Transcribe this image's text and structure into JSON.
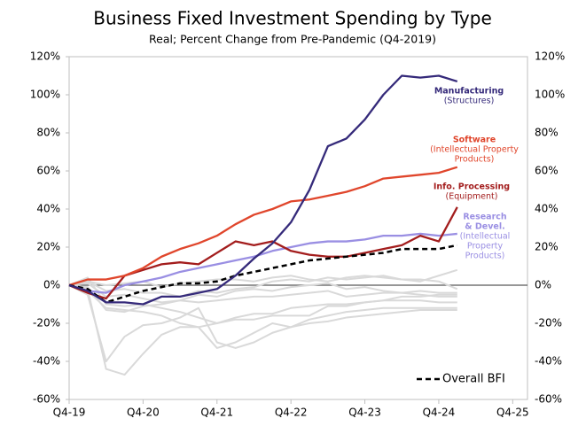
{
  "chart_data": {
    "type": "line",
    "title": "Business Fixed Investment Spending by Type",
    "subtitle": "Real; Percent Change from Pre-Pandemic (Q4-2019)",
    "x": [
      0,
      1,
      2,
      3,
      4,
      5,
      6,
      7,
      8,
      9,
      10,
      11,
      12,
      13,
      14,
      15,
      16,
      17,
      18,
      19,
      20,
      21
    ],
    "xlim": [
      0,
      24.8
    ],
    "xticks": [
      {
        "value": 0,
        "label": "Q4-19"
      },
      {
        "value": 4,
        "label": "Q4-20"
      },
      {
        "value": 8,
        "label": "Q4-21"
      },
      {
        "value": 12,
        "label": "Q4-22"
      },
      {
        "value": 16,
        "label": "Q4-23"
      },
      {
        "value": 20,
        "label": "Q4-24"
      },
      {
        "value": 24,
        "label": "Q4-25"
      }
    ],
    "ylim": [
      -60,
      120
    ],
    "yticks": [
      {
        "value": -60,
        "label": "-60%"
      },
      {
        "value": -40,
        "label": "-40%"
      },
      {
        "value": -20,
        "label": "-20%"
      },
      {
        "value": 0,
        "label": "0%"
      },
      {
        "value": 20,
        "label": "20%"
      },
      {
        "value": 40,
        "label": "40%"
      },
      {
        "value": 60,
        "label": "60%"
      },
      {
        "value": 80,
        "label": "80%"
      },
      {
        "value": 100,
        "label": "100%"
      },
      {
        "value": 120,
        "label": "120%"
      }
    ],
    "legend": "lower right",
    "other_series": [
      {
        "color": "#d9d9d9",
        "values": [
          0,
          -2,
          -44,
          -47,
          -36,
          -26,
          -22,
          -22,
          -20,
          -17,
          -15,
          -15,
          -12,
          -11,
          -10,
          -10,
          -9,
          -8,
          -8,
          -8,
          -9,
          -9
        ]
      },
      {
        "color": "#d9d9d9",
        "values": [
          0,
          -5,
          -40,
          -27,
          -21,
          -20,
          -17,
          -12,
          -30,
          -33,
          -30,
          -25,
          -22,
          -18,
          -16,
          -14,
          -13,
          -12,
          -12,
          -12,
          -12,
          -12
        ]
      },
      {
        "color": "#d9d9d9",
        "values": [
          0,
          -3,
          -12,
          -13,
          -14,
          -16,
          -20,
          -22,
          -33,
          -30,
          -25,
          -20,
          -22,
          -20,
          -19,
          -17,
          -16,
          -15,
          -14,
          -13,
          -13,
          -13
        ]
      },
      {
        "color": "#d9d9d9",
        "values": [
          0,
          4,
          -10,
          -11,
          -10,
          -12,
          -14,
          -17,
          -20,
          -18,
          -18,
          -16,
          -16,
          -16,
          -11,
          -11,
          -9,
          -8,
          -6,
          -6,
          -5,
          -5
        ]
      },
      {
        "color": "#d9d9d9",
        "values": [
          0,
          2,
          -3,
          -2,
          -4,
          -4,
          -6,
          -3,
          -4,
          -2,
          -1,
          2,
          3,
          2,
          4,
          3,
          4,
          5,
          3,
          2,
          5,
          8
        ]
      },
      {
        "color": "#d9d9d9",
        "values": [
          0,
          1,
          -6,
          -5,
          -7,
          -9,
          -8,
          -5,
          -6,
          -3,
          -2,
          -3,
          -1,
          0,
          1,
          -2,
          -1,
          -3,
          -4,
          -3,
          -4,
          -4
        ]
      },
      {
        "color": "#d9d9d9",
        "values": [
          0,
          -1,
          -13,
          -14,
          -11,
          -10,
          -8,
          -9,
          -8,
          -7,
          -6,
          -6,
          -5,
          -4,
          -3,
          -6,
          -5,
          -4,
          -4,
          -5,
          -6,
          -6
        ]
      },
      {
        "color": "#d9d9d9",
        "values": [
          0,
          2,
          0,
          1,
          2,
          -1,
          1,
          2,
          3,
          3,
          2,
          4,
          5,
          3,
          2,
          4,
          5,
          4,
          3,
          3,
          2,
          -2
        ]
      }
    ],
    "series": [
      {
        "name": [
          "Manufacturing"
        ],
        "sublabel": [
          "(Structures)"
        ],
        "color": "#352a7a",
        "values": [
          0,
          -3,
          -9,
          -9,
          -10,
          -6,
          -6,
          -4,
          -2,
          5,
          14,
          22,
          33,
          50,
          73,
          77,
          87,
          100,
          110,
          109,
          110,
          107
        ]
      },
      {
        "name": [
          "Software"
        ],
        "sublabel": [
          "(Intellectual Property",
          "Products)"
        ],
        "color": "#e0462c",
        "values": [
          0,
          3,
          3,
          5,
          9,
          15,
          19,
          22,
          26,
          32,
          37,
          40,
          44,
          45,
          47,
          49,
          52,
          56,
          57,
          58,
          59,
          62
        ]
      },
      {
        "name": [
          "Info. Processing"
        ],
        "sublabel": [
          "(Equipment)"
        ],
        "color": "#a31d1d",
        "values": [
          0,
          -4,
          -7,
          5,
          8,
          11,
          12,
          11,
          17,
          23,
          21,
          23,
          18,
          16,
          15,
          15,
          17,
          19,
          21,
          26,
          23,
          41
        ]
      },
      {
        "name": [
          "Research",
          "& Devel."
        ],
        "sublabel": [
          "(Intellectual",
          "Property",
          "Products)"
        ],
        "color": "#9a8fe3",
        "values": [
          0,
          -3,
          -4,
          0,
          2,
          4,
          7,
          9,
          11,
          13,
          15,
          18,
          20,
          22,
          23,
          23,
          24,
          26,
          26,
          27,
          26,
          27
        ]
      },
      {
        "name": [
          "Overall BFI"
        ],
        "color": "#000000",
        "dashed": true,
        "values": [
          0,
          -2,
          -9,
          -6,
          -3,
          -1,
          1,
          1,
          2,
          5,
          7,
          9,
          11,
          13,
          14,
          15,
          16,
          17,
          19,
          19,
          19,
          21
        ]
      }
    ]
  }
}
